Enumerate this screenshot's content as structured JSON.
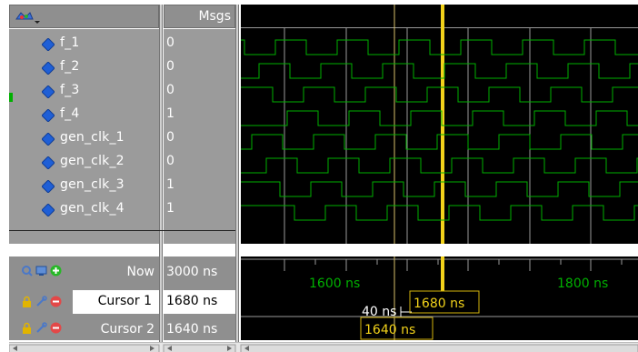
{
  "header": {
    "msgs_label": "Msgs",
    "tool_icon": "palette-dropdown-icon"
  },
  "signals": [
    {
      "name": "f_1",
      "value": "0"
    },
    {
      "name": "f_2",
      "value": "0"
    },
    {
      "name": "f_3",
      "value": "0"
    },
    {
      "name": "f_4",
      "value": "1"
    },
    {
      "name": "gen_clk_1",
      "value": "0"
    },
    {
      "name": "gen_clk_2",
      "value": "0"
    },
    {
      "name": "gen_clk_3",
      "value": "1"
    },
    {
      "name": "gen_clk_4",
      "value": "1"
    }
  ],
  "bottom": {
    "now_label": "Now",
    "now_value": "3000 ns",
    "cursor1_label": "Cursor 1",
    "cursor1_value": "1680 ns",
    "cursor2_label": "Cursor 2",
    "cursor2_value": "1640 ns"
  },
  "timeline": {
    "tick_1600": "1600 ns",
    "tick_1800": "1800 ns",
    "delta_label": "40 ns",
    "cursor1_tag": "1680 ns",
    "cursor2_tag": "1640 ns"
  },
  "colors": {
    "wave": "#00b000",
    "cursor1": "#f2d21a",
    "cursor2": "#d6c16a",
    "grid": "#9a9a9a",
    "pane_bg": "#000000",
    "signal_icon": "#1f5fd6"
  }
}
